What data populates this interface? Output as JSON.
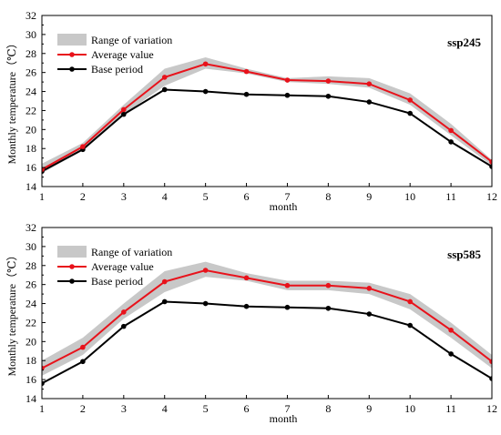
{
  "chart_data": [
    {
      "type": "line",
      "scenario_label": "ssp245",
      "xlabel": "month",
      "ylabel": "Monthly temperature（℃）",
      "x": [
        1,
        2,
        3,
        4,
        5,
        6,
        7,
        8,
        9,
        10,
        11,
        12
      ],
      "xlim": [
        1,
        12
      ],
      "ylim": [
        14,
        32
      ],
      "xticks": [
        "1",
        "2",
        "3",
        "4",
        "5",
        "6",
        "7",
        "8",
        "9",
        "10",
        "11",
        "12"
      ],
      "yticks": [
        "14",
        "16",
        "18",
        "20",
        "22",
        "24",
        "26",
        "28",
        "30",
        "32"
      ],
      "grid": false,
      "legend_position": "top-left",
      "series": [
        {
          "name": "Range of variation",
          "kind": "band",
          "color": "#c8c8c8",
          "lower": [
            15.4,
            17.8,
            21.6,
            24.6,
            26.4,
            25.9,
            25.0,
            24.8,
            24.4,
            22.6,
            19.4,
            16.2
          ],
          "upper": [
            16.4,
            18.6,
            22.6,
            26.4,
            27.6,
            26.4,
            25.4,
            25.6,
            25.4,
            23.8,
            20.6,
            16.8
          ]
        },
        {
          "name": "Average value",
          "kind": "line",
          "color": "#e8121b",
          "values": [
            15.8,
            18.2,
            22.1,
            25.5,
            26.9,
            26.1,
            25.2,
            25.1,
            24.8,
            23.1,
            19.9,
            16.6
          ]
        },
        {
          "name": "Base period",
          "kind": "line",
          "color": "#000000",
          "values": [
            15.6,
            17.9,
            21.6,
            24.2,
            24.0,
            23.7,
            23.6,
            23.5,
            22.9,
            21.7,
            18.7,
            16.1
          ]
        }
      ]
    },
    {
      "type": "line",
      "scenario_label": "ssp585",
      "xlabel": "month",
      "ylabel": "Monthly temperature（℃）",
      "x": [
        1,
        2,
        3,
        4,
        5,
        6,
        7,
        8,
        9,
        10,
        11,
        12
      ],
      "xlim": [
        1,
        12
      ],
      "ylim": [
        14,
        32
      ],
      "xticks": [
        "1",
        "2",
        "3",
        "4",
        "5",
        "6",
        "7",
        "8",
        "9",
        "10",
        "11",
        "12"
      ],
      "yticks": [
        "14",
        "16",
        "18",
        "20",
        "22",
        "24",
        "26",
        "28",
        "30",
        "32"
      ],
      "grid": false,
      "legend_position": "top-left",
      "series": [
        {
          "name": "Range of variation",
          "kind": "band",
          "color": "#c8c8c8",
          "lower": [
            16.4,
            18.6,
            22.4,
            25.2,
            26.8,
            26.4,
            25.4,
            25.4,
            25.0,
            23.4,
            20.4,
            17.2
          ],
          "upper": [
            18.0,
            20.4,
            24.0,
            27.4,
            28.4,
            27.2,
            26.4,
            26.4,
            26.2,
            25.0,
            22.0,
            18.6
          ]
        },
        {
          "name": "Average value",
          "kind": "line",
          "color": "#e8121b",
          "values": [
            17.2,
            19.4,
            23.1,
            26.3,
            27.5,
            26.7,
            25.9,
            25.9,
            25.6,
            24.2,
            21.2,
            17.9
          ]
        },
        {
          "name": "Base period",
          "kind": "line",
          "color": "#000000",
          "values": [
            15.6,
            17.9,
            21.6,
            24.2,
            24.0,
            23.7,
            23.6,
            23.5,
            22.9,
            21.7,
            18.7,
            16.1
          ]
        }
      ]
    }
  ]
}
